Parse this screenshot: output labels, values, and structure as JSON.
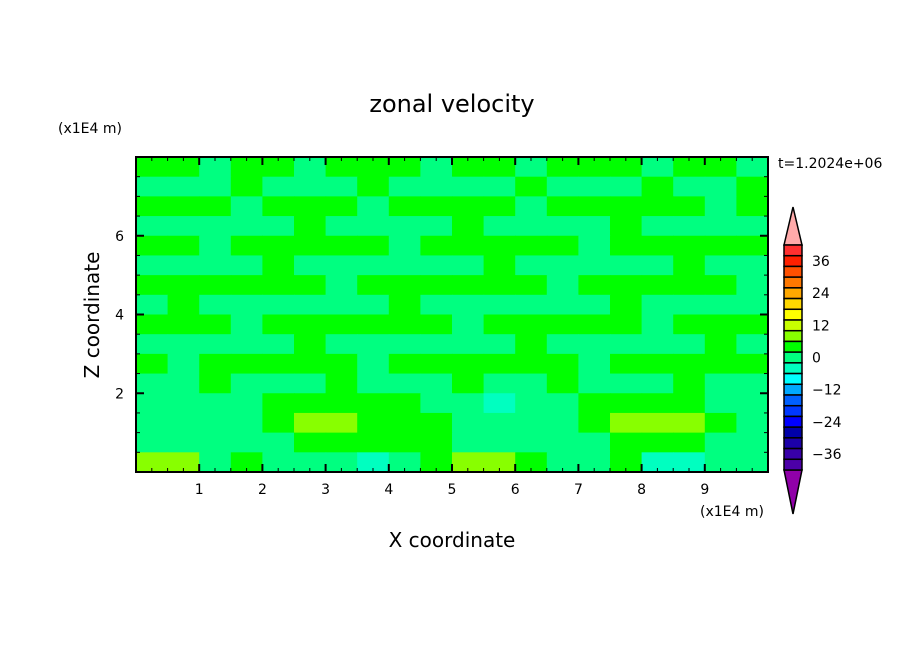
{
  "chart_data": {
    "type": "heatmap",
    "title": "zonal velocity",
    "xlabel": "X coordinate",
    "ylabel": "Z coordinate",
    "x_unit": "(x1E4 m)",
    "y_unit": "(x1E4 m)",
    "annotation": "t=1.2024e+06",
    "xlim": [
      0,
      10
    ],
    "ylim": [
      0,
      8
    ],
    "x_ticks": [
      "1",
      "2",
      "3",
      "4",
      "5",
      "6",
      "7",
      "8",
      "9"
    ],
    "y_ticks": [
      "2",
      "4",
      "6"
    ],
    "grid": false,
    "colorbar": {
      "levels_min": -42,
      "levels_max": 42,
      "step": 4,
      "tick_labels": [
        "36",
        "24",
        "12",
        "0",
        "-12",
        "-24",
        "-36"
      ],
      "colors_top_to_bottom": [
        "#ff3030",
        "#ff2000",
        "#ff5000",
        "#ff7800",
        "#ffa800",
        "#ffd800",
        "#ffff00",
        "#c8ff00",
        "#88ff00",
        "#00ff00",
        "#00ff80",
        "#00ffc0",
        "#00ffff",
        "#00a8ff",
        "#0060ff",
        "#0038ff",
        "#0000ff",
        "#0000a8",
        "#1c00a8",
        "#3800a8",
        "#4c00a8"
      ],
      "over_color": "#ffaaaa",
      "under_color": "#9000a8",
      "placement": "right"
    },
    "z_grid_note_rows_top_to_bottom": "approximate values, 20 columns x 16 rows",
    "z_grid": [
      [
        2,
        2,
        -2,
        2,
        2,
        -2,
        2,
        2,
        2,
        -2,
        2,
        2,
        -2,
        2,
        2,
        2,
        -2,
        2,
        2,
        -2
      ],
      [
        -2,
        -2,
        -2,
        2,
        -2,
        -2,
        -2,
        2,
        -2,
        -2,
        -2,
        -2,
        2,
        -2,
        -2,
        -2,
        2,
        -2,
        -2,
        2
      ],
      [
        2,
        2,
        2,
        -2,
        2,
        2,
        2,
        -2,
        2,
        2,
        2,
        2,
        -2,
        2,
        2,
        2,
        2,
        2,
        -2,
        2
      ],
      [
        -2,
        -2,
        -2,
        -2,
        -2,
        2,
        -2,
        -2,
        -2,
        -2,
        2,
        -2,
        -2,
        -2,
        -2,
        2,
        -2,
        -2,
        -2,
        -2
      ],
      [
        2,
        2,
        -2,
        2,
        2,
        2,
        2,
        2,
        -2,
        2,
        2,
        2,
        2,
        2,
        -2,
        2,
        2,
        2,
        2,
        2
      ],
      [
        -2,
        -2,
        -2,
        -2,
        2,
        -2,
        -2,
        -2,
        -2,
        -2,
        -2,
        2,
        -2,
        -2,
        -2,
        -2,
        -2,
        2,
        -2,
        -2
      ],
      [
        2,
        2,
        2,
        2,
        2,
        2,
        -2,
        2,
        2,
        2,
        2,
        2,
        2,
        -2,
        2,
        2,
        2,
        2,
        2,
        -2
      ],
      [
        -2,
        2,
        -2,
        -2,
        -2,
        -2,
        -2,
        -2,
        2,
        -2,
        -2,
        -2,
        -2,
        -2,
        -2,
        2,
        -2,
        -2,
        -2,
        -2
      ],
      [
        2,
        2,
        2,
        -2,
        2,
        2,
        2,
        2,
        2,
        2,
        -2,
        2,
        2,
        2,
        2,
        2,
        -2,
        2,
        2,
        2
      ],
      [
        -2,
        -2,
        -2,
        -2,
        -2,
        2,
        -2,
        -2,
        -2,
        -2,
        -2,
        -2,
        2,
        -2,
        -2,
        -2,
        -2,
        -2,
        2,
        -2
      ],
      [
        2,
        -2,
        2,
        2,
        2,
        2,
        2,
        -2,
        2,
        2,
        2,
        2,
        2,
        2,
        -2,
        2,
        2,
        2,
        2,
        2
      ],
      [
        -2,
        -2,
        2,
        -2,
        -2,
        -2,
        2,
        -2,
        -2,
        -2,
        2,
        -2,
        -2,
        2,
        -2,
        -2,
        -2,
        2,
        -2,
        -2
      ],
      [
        -2,
        -2,
        -2,
        -2,
        2,
        2,
        2,
        2,
        2,
        -2,
        -2,
        -5,
        -2,
        -2,
        2,
        2,
        2,
        2,
        -2,
        -2
      ],
      [
        -2,
        -2,
        -2,
        -2,
        2,
        6,
        6,
        2,
        2,
        2,
        -2,
        -2,
        -2,
        -2,
        2,
        6,
        6,
        6,
        2,
        -2
      ],
      [
        -2,
        -2,
        -2,
        -2,
        -2,
        2,
        2,
        2,
        2,
        2,
        -2,
        -2,
        -2,
        -2,
        -2,
        2,
        2,
        2,
        -2,
        -2
      ],
      [
        6,
        6,
        -2,
        2,
        -2,
        -2,
        -2,
        -5,
        -2,
        2,
        6,
        6,
        2,
        -2,
        -2,
        2,
        -5,
        -5,
        -2,
        -2
      ]
    ]
  }
}
